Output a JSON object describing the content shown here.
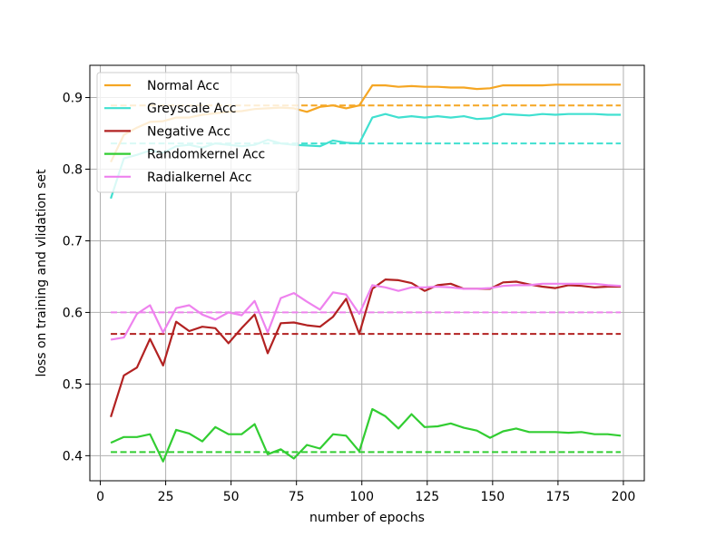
{
  "chart_data": {
    "type": "line",
    "title": "",
    "xlabel": "number of epochs",
    "ylabel": "loss on training and vlidation set",
    "xlim": [
      -4,
      208
    ],
    "ylim": [
      0.365,
      0.945
    ],
    "xticks": [
      0,
      25,
      50,
      75,
      100,
      125,
      150,
      175,
      200
    ],
    "yticks": [
      0.4,
      0.5,
      0.6,
      0.7,
      0.8,
      0.9
    ],
    "ytick_labels": [
      "0.4",
      "0.5",
      "0.6",
      "0.7",
      "0.8",
      "0.9"
    ],
    "grid": true,
    "legend_position": "top-left",
    "x": [
      4,
      9,
      14,
      19,
      24,
      29,
      34,
      39,
      44,
      49,
      54,
      59,
      64,
      69,
      74,
      79,
      84,
      89,
      94,
      99,
      104,
      109,
      114,
      119,
      124,
      129,
      134,
      139,
      144,
      149,
      154,
      159,
      164,
      169,
      174,
      179,
      184,
      189,
      194,
      199
    ],
    "series": [
      {
        "name": "Normal Acc",
        "color": "#f5a623",
        "values": [
          0.81,
          0.848,
          0.858,
          0.866,
          0.867,
          0.872,
          0.872,
          0.876,
          0.878,
          0.88,
          0.881,
          0.884,
          0.885,
          0.886,
          0.885,
          0.88,
          0.887,
          0.889,
          0.885,
          0.889,
          0.917,
          0.917,
          0.915,
          0.916,
          0.915,
          0.915,
          0.914,
          0.914,
          0.912,
          0.913,
          0.917,
          0.917,
          0.917,
          0.917,
          0.918,
          0.918,
          0.918,
          0.918,
          0.918,
          0.918
        ],
        "baseline": 0.889
      },
      {
        "name": "Greyscale Acc",
        "color": "#40e0d0",
        "values": [
          0.759,
          0.815,
          0.82,
          0.826,
          0.823,
          0.832,
          0.834,
          0.83,
          0.836,
          0.834,
          0.832,
          0.834,
          0.841,
          0.836,
          0.834,
          0.833,
          0.832,
          0.84,
          0.837,
          0.836,
          0.872,
          0.877,
          0.872,
          0.874,
          0.872,
          0.874,
          0.872,
          0.874,
          0.87,
          0.871,
          0.877,
          0.876,
          0.875,
          0.877,
          0.876,
          0.877,
          0.877,
          0.877,
          0.876,
          0.876
        ],
        "baseline": 0.836
      },
      {
        "name": "Negative Acc",
        "color": "#b22222",
        "values": [
          0.454,
          0.512,
          0.523,
          0.563,
          0.526,
          0.587,
          0.574,
          0.58,
          0.578,
          0.557,
          0.578,
          0.597,
          0.543,
          0.585,
          0.586,
          0.582,
          0.58,
          0.594,
          0.619,
          0.57,
          0.633,
          0.646,
          0.645,
          0.641,
          0.63,
          0.638,
          0.64,
          0.633,
          0.633,
          0.633,
          0.642,
          0.643,
          0.639,
          0.636,
          0.634,
          0.638,
          0.637,
          0.635,
          0.636,
          0.636
        ],
        "baseline": 0.57
      },
      {
        "name": "Randomkernel Acc",
        "color": "#32cd32",
        "values": [
          0.418,
          0.426,
          0.426,
          0.43,
          0.392,
          0.436,
          0.431,
          0.42,
          0.44,
          0.43,
          0.43,
          0.444,
          0.402,
          0.409,
          0.396,
          0.415,
          0.41,
          0.43,
          0.428,
          0.406,
          0.465,
          0.455,
          0.438,
          0.458,
          0.44,
          0.441,
          0.445,
          0.439,
          0.435,
          0.425,
          0.434,
          0.438,
          0.433,
          0.433,
          0.433,
          0.432,
          0.433,
          0.43,
          0.43,
          0.428
        ],
        "baseline": 0.405
      },
      {
        "name": "Radialkernel Acc",
        "color": "#ee82ee",
        "values": [
          0.562,
          0.565,
          0.598,
          0.61,
          0.572,
          0.606,
          0.61,
          0.597,
          0.59,
          0.6,
          0.596,
          0.616,
          0.572,
          0.62,
          0.627,
          0.615,
          0.604,
          0.628,
          0.625,
          0.598,
          0.638,
          0.635,
          0.63,
          0.635,
          0.635,
          0.636,
          0.635,
          0.633,
          0.633,
          0.634,
          0.637,
          0.638,
          0.638,
          0.64,
          0.64,
          0.64,
          0.64,
          0.64,
          0.638,
          0.637
        ],
        "baseline": 0.6
      }
    ]
  }
}
